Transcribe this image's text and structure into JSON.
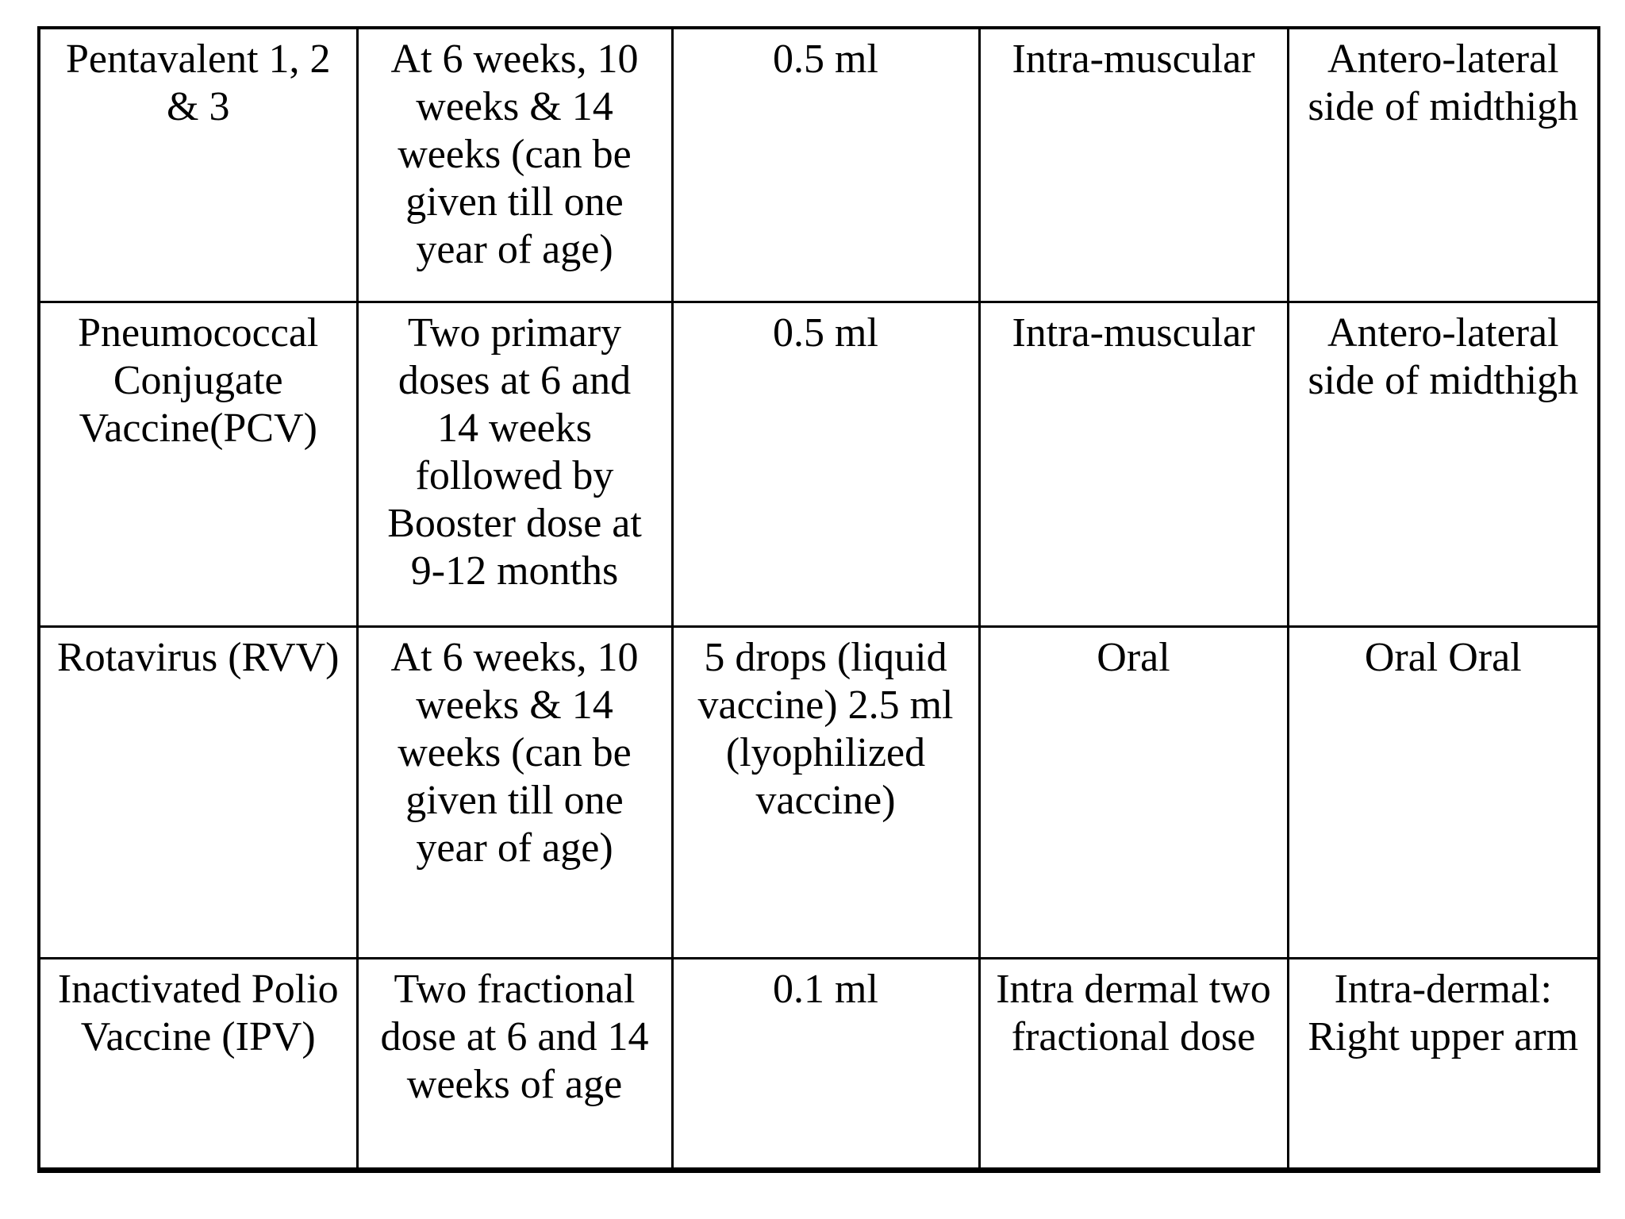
{
  "colors": {
    "background": "#ffffff",
    "border": "#000000",
    "text": "#000000"
  },
  "table": {
    "rows": [
      {
        "vaccine": "Pentavalent 1, 2\n& 3",
        "schedule": "At 6 weeks, 10\nweeks & 14\nweeks (can be\ngiven till one\nyear of age)",
        "dose": "0.5 ml",
        "route": "Intra-muscular",
        "site": "Antero-lateral\nside of midthigh"
      },
      {
        "vaccine": "Pneumococcal\nConjugate\nVaccine(PCV)",
        "schedule": "Two primary\ndoses at 6 and\n14 weeks\nfollowed by\nBooster dose at\n9-12 months",
        "dose": "0.5 ml",
        "route": "Intra-muscular",
        "site": "Antero-lateral\nside of midthigh"
      },
      {
        "vaccine": "Rotavirus (RVV)",
        "schedule": "At 6 weeks, 10\nweeks & 14\nweeks (can be\ngiven till one\nyear of age)",
        "dose": "5 drops (liquid\nvaccine) 2.5 ml\n(lyophilized\nvaccine)",
        "route": "Oral",
        "site": "Oral Oral"
      },
      {
        "vaccine": "Inactivated Polio\nVaccine (IPV)",
        "schedule": "Two fractional\ndose at 6 and 14\nweeks of age",
        "dose": "0.1 ml",
        "route": "Intra dermal two\nfractional dose",
        "site": "Intra-dermal:\nRight upper arm"
      }
    ]
  }
}
